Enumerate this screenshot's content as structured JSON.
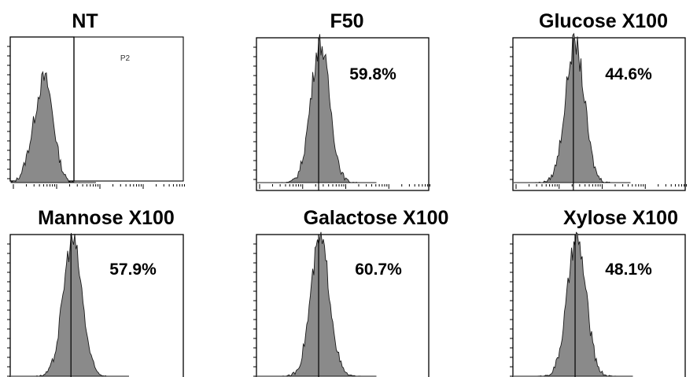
{
  "chart_data": [
    {
      "type": "histogram",
      "title": "NT",
      "gate_label": "P2",
      "percent_label": "",
      "peak_position": 0.2,
      "marker_line": false
    },
    {
      "type": "histogram",
      "title": "F50",
      "gate_label": "",
      "percent_label": "59.8%",
      "peak_position": 0.37,
      "marker_line": true
    },
    {
      "type": "histogram",
      "title": "Glucose X100",
      "gate_label": "",
      "percent_label": "44.6%",
      "peak_position": 0.36,
      "marker_line": true
    },
    {
      "type": "histogram",
      "title": "Mannose X100",
      "gate_label": "",
      "percent_label": "57.9%",
      "peak_position": 0.36,
      "marker_line": true
    },
    {
      "type": "histogram",
      "title": "Galactose X100",
      "gate_label": "",
      "percent_label": "60.7%",
      "peak_position": 0.37,
      "marker_line": true
    },
    {
      "type": "histogram",
      "title": "Xylose X100",
      "gate_label": "",
      "percent_label": "48.1%",
      "peak_position": 0.37,
      "marker_line": true
    }
  ],
  "colors": {
    "fill": "#8a8a8a",
    "stroke": "#1a1a1a",
    "frame": "#000000"
  }
}
